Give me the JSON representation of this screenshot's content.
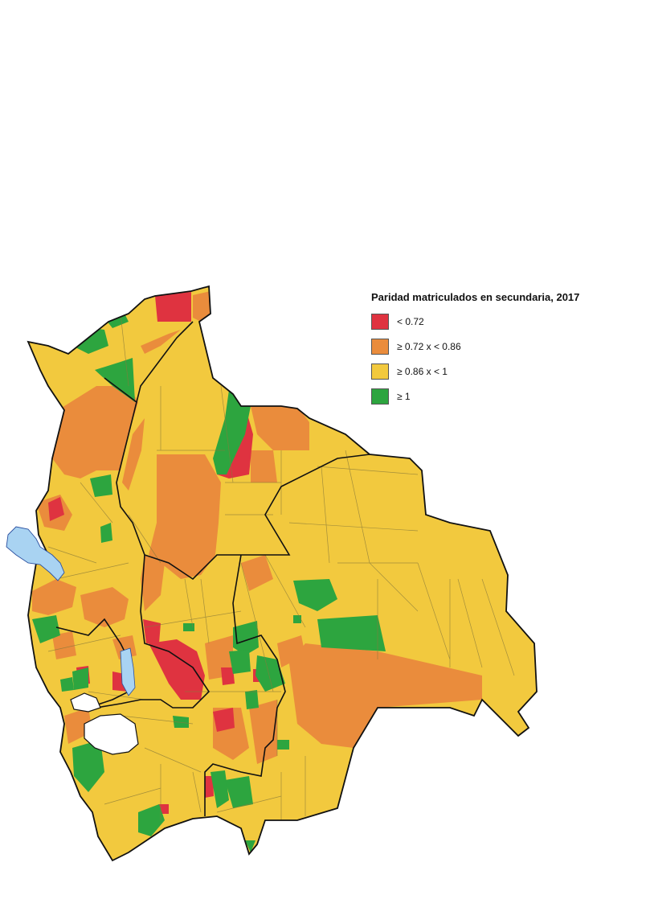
{
  "legend": {
    "title": "Paridad matriculados en secundaria, 2017",
    "items": [
      {
        "label": "< 0.72",
        "color": "#df3340"
      },
      {
        "label": "≥ 0.72 x < 0.86",
        "color": "#ea8c3c"
      },
      {
        "label": "≥ 0.86 x < 1",
        "color": "#f2c93e"
      },
      {
        "label": "≥ 1",
        "color": "#2da53f"
      }
    ]
  },
  "colors": {
    "base": "#f2c93e",
    "red": "#df3340",
    "orange": "#ea8c3c",
    "yellow": "#f2c93e",
    "green": "#2da53f",
    "lake": "#a9d3f2",
    "salt_flat": "#ffffff",
    "border": "#111111",
    "muni_line": "#8a7a3a"
  }
}
